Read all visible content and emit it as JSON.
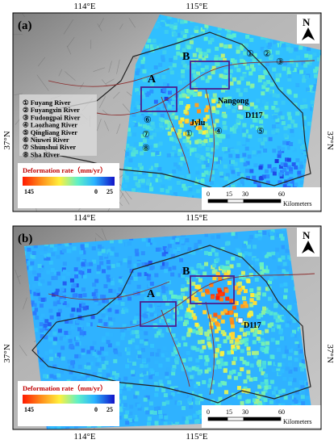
{
  "axes": {
    "top_labels": [
      "114°E",
      "115°E"
    ],
    "middle_labels": [
      "114°E",
      "115°E"
    ],
    "bottom_labels": [
      "114°E",
      "115°E"
    ],
    "left_labels": [
      "37°N",
      "37°N"
    ],
    "right_labels": [
      "37°N",
      "37°N"
    ]
  },
  "panels": [
    {
      "label": "(a)",
      "boxes": [
        "A",
        "B"
      ],
      "places": [
        "Nangong",
        "Jylu"
      ],
      "station": "D117",
      "river_markers": [
        "①",
        "②",
        "③",
        "④",
        "⑤",
        "⑥",
        "⑦",
        "⑧",
        "①"
      ],
      "river_list": [
        "① Fuyang River",
        "② Fuyangxin River",
        "③ Fudongpai River",
        "④ Laozhang River",
        "⑤ Qingliang River",
        "⑥ Niuwei River",
        "⑦ Shunshui River",
        "⑧ Sha River"
      ],
      "legend": {
        "title": "Deformation rate（mm/yr）",
        "min": "145",
        "mid": "0",
        "max": "25"
      },
      "scale": {
        "ticks": [
          "0",
          "15",
          "30",
          "60"
        ],
        "unit": "Kilometers"
      },
      "north": "N"
    },
    {
      "label": "(b)",
      "boxes": [
        "A",
        "B"
      ],
      "station": "D117",
      "legend": {
        "title": "Deformation rate（mm/yr）",
        "min": "145",
        "mid": "0",
        "max": "25"
      },
      "scale": {
        "ticks": [
          "0",
          "15",
          "30",
          "60"
        ],
        "unit": "Kilometers"
      },
      "north": "N"
    }
  ]
}
